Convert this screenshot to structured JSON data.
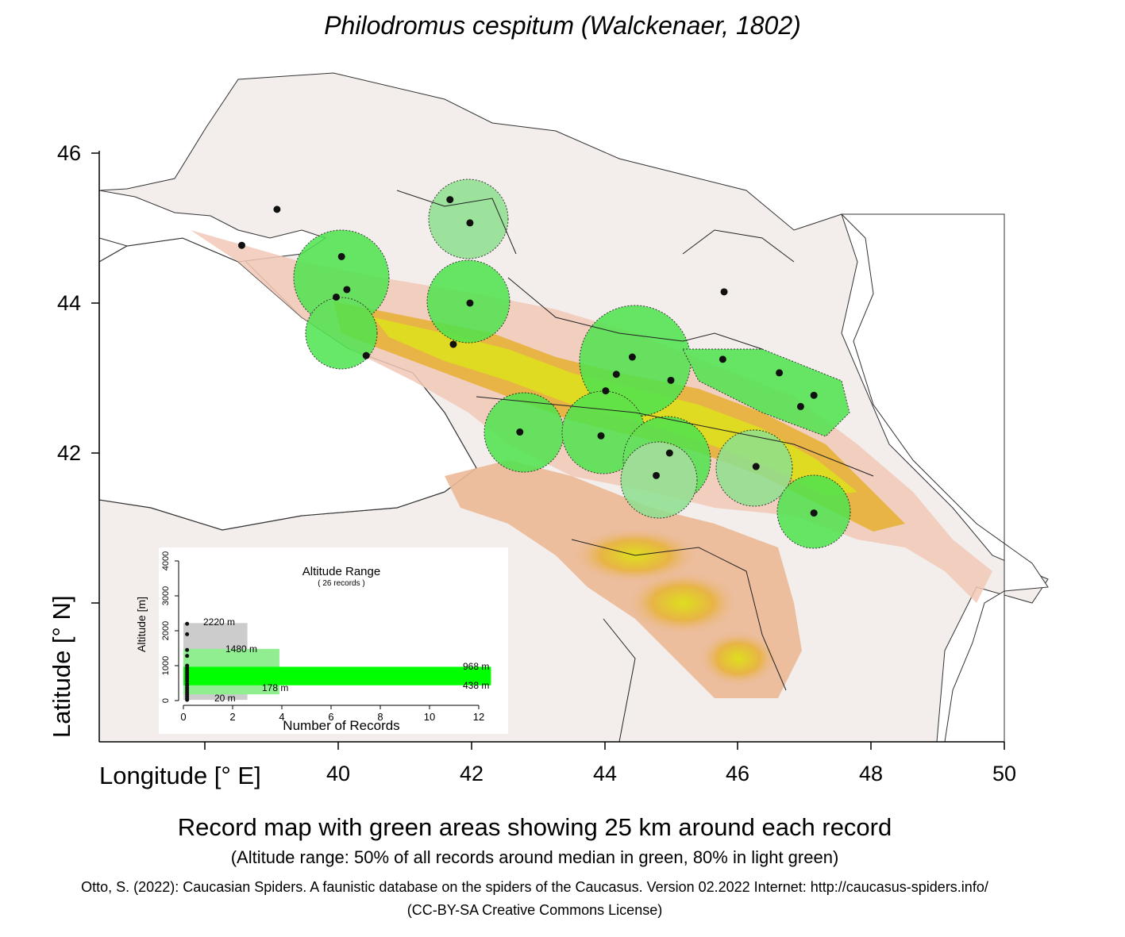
{
  "map": {
    "title": "Philodromus cespitum (Walckenaer, 1802)",
    "x_axis_label": "Longitude [° E]",
    "y_axis_label": "Latitude [° N]",
    "x_ticks": [
      "40",
      "42",
      "44",
      "46",
      "48",
      "50"
    ],
    "y_ticks": [
      "46",
      "44",
      "42"
    ],
    "caption": "Record map with green areas showing 25 km around each record",
    "subcaption": "(Altitude range: 50% of all records around median in green, 80% in light green)",
    "citation": "Otto, S. (2022): Caucasian Spiders. A faunistic database on the spiders of the Caucasus. Version 02.2022 Internet: http://caucasus-spiders.info/",
    "license": "(CC-BY-SA Creative Commons License)",
    "colors": {
      "green_50": "#33ee33",
      "light_green_80": "#90ee90",
      "gray_100": "#cccccc",
      "lowland": "#f3ece9",
      "foothill": "#f0b090",
      "mountain": "#e8b040",
      "high_mountain": "#e0e020",
      "record_point": "#111111"
    }
  },
  "inset": {
    "title": "Altitude Range",
    "subtitle": "( 26 records )",
    "y_label": "Altitude [m]",
    "x_label": "Number of Records",
    "y_ticks": [
      "0",
      "1000",
      "2000",
      "3000",
      "4000"
    ],
    "x_ticks": [
      "0",
      "2",
      "4",
      "6",
      "8",
      "10",
      "12"
    ],
    "labels": {
      "max": "2220  m",
      "p80_high": "1480  m",
      "p50_high": "968  m",
      "p50_low": "438  m",
      "p80_low": "178  m",
      "min": "20  m"
    }
  },
  "chart_data": {
    "type": "scatter",
    "title": "Philodromus cespitum (Walckenaer, 1802)",
    "xlabel": "Longitude [° E]",
    "ylabel": "Latitude [° N]",
    "xlim": [
      38.0,
      50.0
    ],
    "ylim": [
      39.4,
      47.5
    ],
    "records": [
      {
        "lon": 39.08,
        "lat": 45.25
      },
      {
        "lon": 38.55,
        "lat": 44.77
      },
      {
        "lon": 40.05,
        "lat": 44.62
      },
      {
        "lon": 40.13,
        "lat": 44.18
      },
      {
        "lon": 39.97,
        "lat": 44.08
      },
      {
        "lon": 40.42,
        "lat": 43.3
      },
      {
        "lon": 41.68,
        "lat": 45.38
      },
      {
        "lon": 41.98,
        "lat": 45.07
      },
      {
        "lon": 41.98,
        "lat": 44.0
      },
      {
        "lon": 41.73,
        "lat": 43.45
      },
      {
        "lon": 45.8,
        "lat": 44.15
      },
      {
        "lon": 44.42,
        "lat": 43.28
      },
      {
        "lon": 44.18,
        "lat": 43.05
      },
      {
        "lon": 44.02,
        "lat": 42.83
      },
      {
        "lon": 45.0,
        "lat": 42.97
      },
      {
        "lon": 45.78,
        "lat": 43.25
      },
      {
        "lon": 46.63,
        "lat": 43.07
      },
      {
        "lon": 46.95,
        "lat": 42.62
      },
      {
        "lon": 47.15,
        "lat": 42.77
      },
      {
        "lon": 42.73,
        "lat": 42.28
      },
      {
        "lon": 43.95,
        "lat": 42.23
      },
      {
        "lon": 44.98,
        "lat": 42.0
      },
      {
        "lon": 44.78,
        "lat": 41.7
      },
      {
        "lon": 46.28,
        "lat": 41.82
      },
      {
        "lon": 47.15,
        "lat": 41.2
      }
    ],
    "altitude_range": {
      "type": "bar",
      "x_range": [
        0,
        12
      ],
      "y_range": [
        0,
        4000
      ],
      "min_m": 20,
      "p80_low_m": 178,
      "p50_low_m": 438,
      "p50_high_m": 968,
      "p80_high_m": 1480,
      "max_m": 2220,
      "band_widths": {
        "full": 2.6,
        "p80": 3.9,
        "p50": 12.5
      },
      "record_altitudes_m": [
        20,
        60,
        120,
        180,
        240,
        300,
        360,
        430,
        480,
        560,
        620,
        680,
        740,
        800,
        860,
        930,
        1000,
        1280,
        1450,
        1900,
        2200
      ]
    }
  }
}
